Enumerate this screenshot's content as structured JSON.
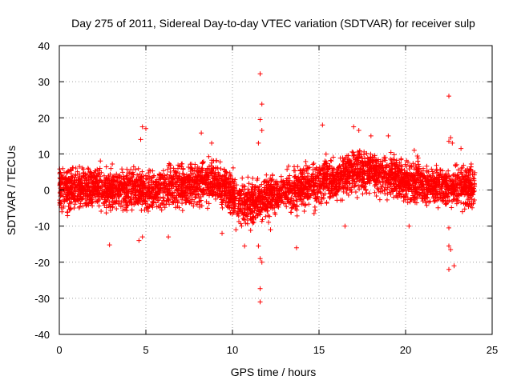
{
  "chart_data": {
    "type": "scatter",
    "title": "Day 275 of 2011, Sidereal Day-to-day VTEC variation (SDTVAR) for receiver sulp",
    "xlabel": "GPS time / hours",
    "ylabel": "SDTVAR / TECUs",
    "xlim": [
      0,
      25
    ],
    "ylim": [
      -40,
      40
    ],
    "xticks": [
      0,
      5,
      10,
      15,
      20,
      25
    ],
    "xtick_labels": [
      "0",
      "5",
      "10",
      "15",
      "20",
      "25"
    ],
    "yticks": [
      -40,
      -30,
      -20,
      -10,
      0,
      10,
      20,
      30,
      40
    ],
    "ytick_labels": [
      "-40",
      "-30",
      "-20",
      "-10",
      "0",
      "10",
      "20",
      "30",
      "40"
    ],
    "grid": true,
    "marker": "+",
    "color": "#ff0000",
    "x_extent": [
      0,
      24
    ],
    "band_center": [
      [
        0,
        0
      ],
      [
        1,
        0.5
      ],
      [
        2,
        1
      ],
      [
        3,
        0
      ],
      [
        4,
        0.5
      ],
      [
        5,
        0
      ],
      [
        6,
        0.5
      ],
      [
        7,
        1
      ],
      [
        8,
        2
      ],
      [
        8.8,
        3
      ],
      [
        9.5,
        1
      ],
      [
        10,
        -1
      ],
      [
        10.5,
        -3
      ],
      [
        11,
        -4
      ],
      [
        11.5,
        -3
      ],
      [
        12,
        -2
      ],
      [
        12.5,
        -1
      ],
      [
        13,
        -1
      ],
      [
        13.5,
        0
      ],
      [
        14,
        1
      ],
      [
        15,
        2
      ],
      [
        16,
        3
      ],
      [
        17,
        5
      ],
      [
        18,
        5
      ],
      [
        18.8,
        4.5
      ],
      [
        19.5,
        3
      ],
      [
        20,
        2
      ],
      [
        21,
        2
      ],
      [
        22,
        1
      ],
      [
        23,
        1
      ],
      [
        24,
        1
      ]
    ],
    "band_halfwidth": 5,
    "outliers": [
      {
        "x": 11.6,
        "y": 32.2
      },
      {
        "x": 11.7,
        "y": 23.8
      },
      {
        "x": 11.6,
        "y": 19.5
      },
      {
        "x": 11.7,
        "y": 16.5
      },
      {
        "x": 11.5,
        "y": 13.0
      },
      {
        "x": 11.6,
        "y": -19.0
      },
      {
        "x": 11.7,
        "y": -20.0
      },
      {
        "x": 11.6,
        "y": -27.3
      },
      {
        "x": 11.6,
        "y": -31.0
      },
      {
        "x": 11.5,
        "y": -15.5
      },
      {
        "x": 10.7,
        "y": -15.5
      },
      {
        "x": 22.5,
        "y": 26.0
      },
      {
        "x": 22.6,
        "y": 14.5
      },
      {
        "x": 22.5,
        "y": 13.5
      },
      {
        "x": 22.7,
        "y": 13.0
      },
      {
        "x": 22.5,
        "y": -15.5
      },
      {
        "x": 22.6,
        "y": -16.5
      },
      {
        "x": 22.8,
        "y": -21.0
      },
      {
        "x": 22.5,
        "y": -22.0
      },
      {
        "x": 4.8,
        "y": 17.5
      },
      {
        "x": 5.0,
        "y": 17.0
      },
      {
        "x": 4.7,
        "y": 14.0
      },
      {
        "x": 4.8,
        "y": -13.0
      },
      {
        "x": 4.6,
        "y": -14.0
      },
      {
        "x": 6.3,
        "y": -13.0
      },
      {
        "x": 2.9,
        "y": -15.2
      },
      {
        "x": 8.2,
        "y": 15.8
      },
      {
        "x": 15.2,
        "y": 18.0
      },
      {
        "x": 17.0,
        "y": 17.5
      },
      {
        "x": 17.3,
        "y": 16.5
      },
      {
        "x": 13.7,
        "y": -16.0
      },
      {
        "x": 22.5,
        "y": -10.5
      },
      {
        "x": 20.2,
        "y": -10.0
      },
      {
        "x": 18.0,
        "y": 15.0
      },
      {
        "x": 19.0,
        "y": 15.0
      },
      {
        "x": 8.8,
        "y": 13.0
      },
      {
        "x": 9.4,
        "y": -12.0
      },
      {
        "x": 10.2,
        "y": -11.0
      },
      {
        "x": 12.2,
        "y": -11.0
      },
      {
        "x": 16.5,
        "y": -10.0
      },
      {
        "x": 20.5,
        "y": 11.0
      },
      {
        "x": 23.2,
        "y": 11.5
      }
    ]
  }
}
